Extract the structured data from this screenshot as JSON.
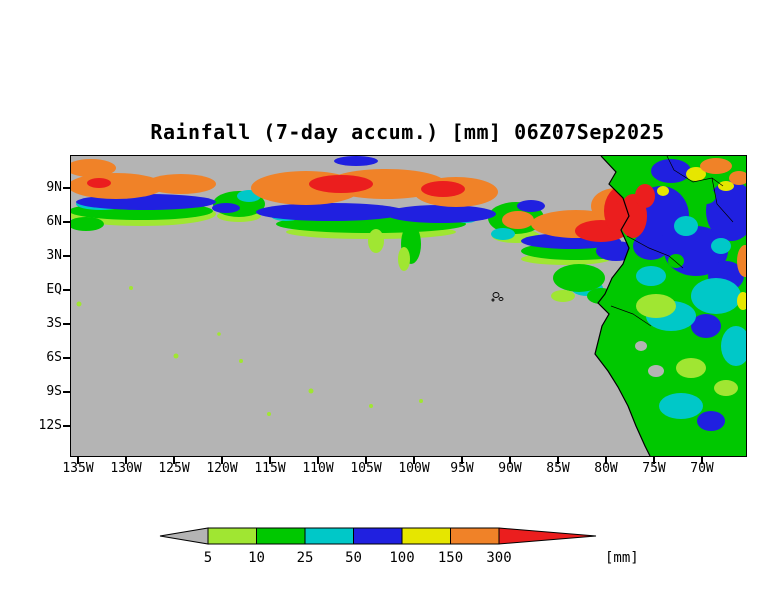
{
  "title": "Rainfall (7-day accum.) [mm] 06Z07Sep2025",
  "palette": {
    "gray": "#b4b4b4",
    "green_light": "#a0e632",
    "green": "#00c800",
    "cyan": "#00c8c8",
    "blue": "#2020e0",
    "yellow": "#e6e600",
    "orange": "#f08228",
    "red": "#eb1e1e"
  },
  "map": {
    "lat_ticks": [
      "9N",
      "6N",
      "3N",
      "EQ",
      "3S",
      "6S",
      "9S",
      "12S"
    ],
    "lon_ticks": [
      "135W",
      "130W",
      "125W",
      "120W",
      "115W",
      "110W",
      "105W",
      "100W",
      "95W",
      "90W",
      "85W",
      "80W",
      "75W",
      "70W"
    ]
  },
  "colorbar": {
    "unit": "[mm]",
    "labels": [
      "5",
      "10",
      "25",
      "50",
      "100",
      "150",
      "300"
    ],
    "segments": [
      {
        "color": "gray"
      },
      {
        "color": "green_light"
      },
      {
        "color": "green"
      },
      {
        "color": "cyan"
      },
      {
        "color": "blue"
      },
      {
        "color": "yellow"
      },
      {
        "color": "orange"
      },
      {
        "color": "red"
      }
    ]
  },
  "chart_data": {
    "type": "heatmap",
    "title": "Rainfall (7-day accum.) [mm] 06Z07Sep2025",
    "variable": "7-day accumulated rainfall",
    "unit": "mm",
    "datetime_label": "06Z07Sep2025",
    "x_axis": {
      "label": "longitude",
      "ticks": [
        "135W",
        "130W",
        "125W",
        "120W",
        "115W",
        "110W",
        "105W",
        "100W",
        "95W",
        "90W",
        "85W",
        "80W",
        "75W",
        "70W"
      ],
      "approx_range": [
        "136W",
        "66W"
      ]
    },
    "y_axis": {
      "label": "latitude",
      "ticks": [
        "9N",
        "6N",
        "3N",
        "EQ",
        "3S",
        "6S",
        "9S",
        "12S"
      ],
      "approx_range": [
        "14S",
        "12N"
      ]
    },
    "color_scale": {
      "levels_mm": [
        5,
        10,
        25,
        50,
        100,
        150,
        300
      ],
      "bins": [
        {
          "range": "< 5",
          "color": "gray"
        },
        {
          "range": "5-10",
          "color": "yellow-green"
        },
        {
          "range": "10-25",
          "color": "green"
        },
        {
          "range": "25-50",
          "color": "cyan"
        },
        {
          "range": "50-100",
          "color": "blue"
        },
        {
          "range": "100-150",
          "color": "yellow"
        },
        {
          "range": "150-300",
          "color": "orange"
        },
        {
          "range": "> 300",
          "color": "red"
        }
      ]
    },
    "features": [
      "Continuous ITCZ rain band across the map near 5N-10N with heavy totals (150-300+ mm) roughly 135W-110W and 95W-78W",
      "Very heavy rainfall (>300 mm, red) along the Colombian Pacific coast near 4N-8N",
      "Widespread 25-100+ mm (green/cyan/blue) over northwest South America and the western Amazon, with 150-300 mm spots near the northeast edge",
      "Dry gray (<5 mm) southeastern Pacific south of the equator with only scattered light-rain specks",
      "Dry gray strip along the Peruvian coastal desert",
      "Galapagos Islands outlined in black near 90W on the equator"
    ]
  }
}
